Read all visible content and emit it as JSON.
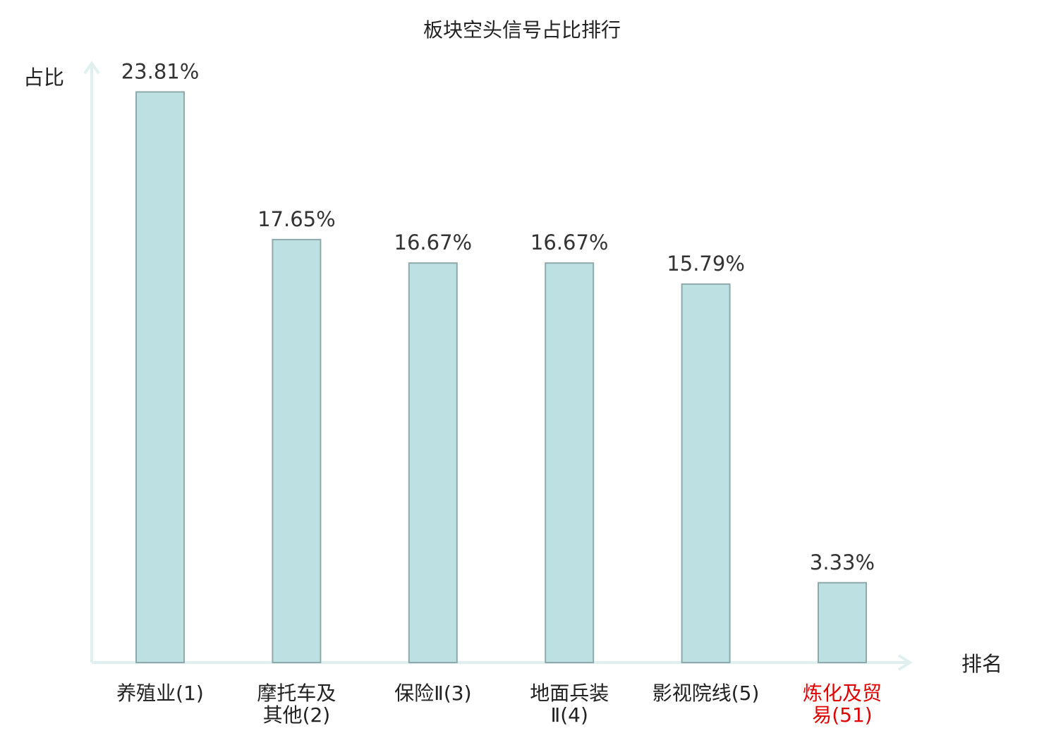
{
  "chart_data": {
    "type": "bar",
    "title": "板块空头信号占比排行",
    "ylabel": "占比",
    "xlabel": "排名",
    "ylim": [
      0,
      25
    ],
    "grid": false,
    "bar_color": "#bde0e3",
    "bar_border_color": "#8ea9aa",
    "axis_color": "#dff0ee",
    "highlight_color": "#e00000",
    "categories": [
      {
        "lines": [
          "养殖业(1)"
        ],
        "highlight": false
      },
      {
        "lines": [
          "摩托车及",
          "其他(2)"
        ],
        "highlight": false
      },
      {
        "lines": [
          "保险Ⅱ(3)"
        ],
        "highlight": false
      },
      {
        "lines": [
          "地面兵装",
          "Ⅱ(4)"
        ],
        "highlight": false
      },
      {
        "lines": [
          "影视院线(5)"
        ],
        "highlight": false
      },
      {
        "lines": [
          "炼化及贸",
          "易(51)"
        ],
        "highlight": true
      }
    ],
    "values": [
      23.81,
      17.65,
      16.67,
      16.67,
      15.79,
      3.33
    ],
    "value_labels": [
      "23.81%",
      "17.65%",
      "16.67%",
      "16.67%",
      "15.79%",
      "3.33%"
    ]
  }
}
